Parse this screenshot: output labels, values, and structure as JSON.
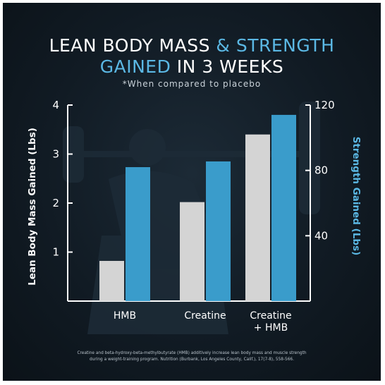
{
  "header": {
    "title_line1_white": "LEAN BODY MASS",
    "title_line1_accent": "& STRENGTH",
    "title_line2_accent": "GAINED",
    "title_line2_white": "IN 3 WEEKS",
    "subtitle": "*When compared to placebo"
  },
  "footnote": {
    "line1": "Creatine and beta-hydroxy-beta-methylbutyrate (HMB) additively increase lean body mass and muscle strength",
    "line2": "during a weight-training program. Nutrition (Burbank, Los Angeles County, Calif.), 17(7-8), 558-566."
  },
  "colors": {
    "lean_bar": "#d4d4d4",
    "strength_bar": "#3a9ccb",
    "accent_text": "#5bb8e4",
    "axis": "#ffffff"
  },
  "chart_data": {
    "type": "bar",
    "categories": [
      [
        "HMB"
      ],
      [
        "Creatine"
      ],
      [
        "Creatine",
        "+ HMB"
      ]
    ],
    "series": [
      {
        "name": "Lean Body Mass Gained",
        "axis": "left",
        "values": [
          0.82,
          2.02,
          3.4
        ]
      },
      {
        "name": "Strength Gained",
        "axis": "right",
        "values": [
          82,
          85.5,
          114
        ]
      }
    ],
    "ylabel_left": "Lean Body Mass Gained (Lbs)",
    "ylabel_right": "Strength Gained (Lbs)",
    "ylim_left": [
      0,
      4
    ],
    "ylim_right": [
      0,
      120
    ],
    "yticks_left": [
      1,
      2,
      3,
      4
    ],
    "yticks_right": [
      40,
      80,
      120
    ],
    "grid": false
  }
}
